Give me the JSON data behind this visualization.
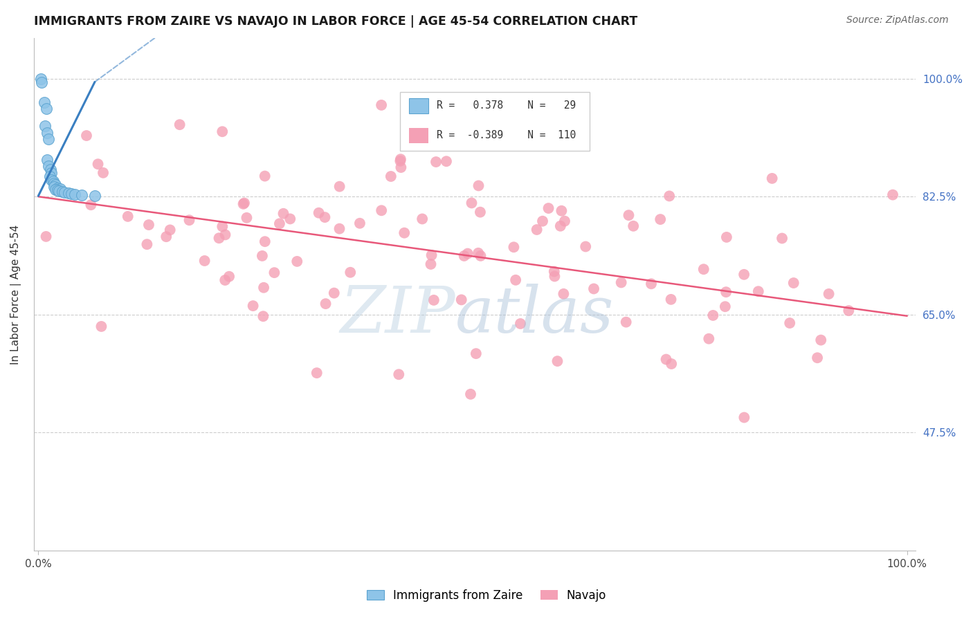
{
  "title": "IMMIGRANTS FROM ZAIRE VS NAVAJO IN LABOR FORCE | AGE 45-54 CORRELATION CHART",
  "source": "Source: ZipAtlas.com",
  "ylabel": "In Labor Force | Age 45-54",
  "legend_r_blue": "0.378",
  "legend_n_blue": "29",
  "legend_r_pink": "-0.389",
  "legend_n_pink": "110",
  "blue_color": "#8ec4e8",
  "blue_edge_color": "#5ba3d0",
  "pink_color": "#f4a0b5",
  "trend_blue_color": "#3a7fc1",
  "trend_pink_color": "#e8587a",
  "right_label_color": "#4472c4",
  "yticks": [
    0.475,
    0.65,
    0.825,
    1.0
  ],
  "ytick_labels": [
    "47.5%",
    "65.0%",
    "82.5%",
    "100.0%"
  ],
  "ylim_low": 0.3,
  "ylim_high": 1.06,
  "xlim_low": -0.005,
  "xlim_high": 1.01
}
